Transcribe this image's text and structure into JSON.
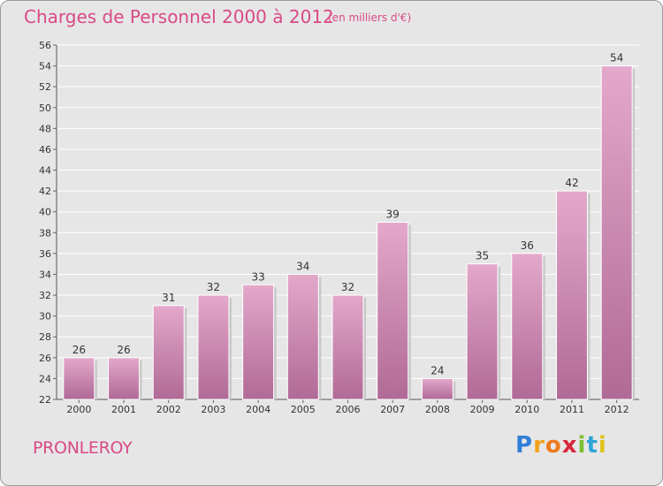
{
  "header": {
    "title": "Charges de Personnel 2000 à 2012",
    "subtitle": "(en milliers d'€)"
  },
  "footer": {
    "town": "PRONLEROY",
    "logo": {
      "letters": [
        "P",
        "r",
        "o",
        "x",
        "i",
        "t",
        "i"
      ],
      "colors": [
        "#2f7fd8",
        "#f2a31b",
        "#ee7a1e",
        "#d8263c",
        "#7cbf2e",
        "#2fa3d8",
        "#e0c21a"
      ]
    }
  },
  "colors": {
    "bar_top": "#e4a8ca",
    "bar_bottom": "#b06a96",
    "title": "#d94a86",
    "plot_background": "#e6e6e6",
    "grid": "#ffffff"
  },
  "chart_data": {
    "type": "bar",
    "title": "Charges de Personnel 2000 à 2012",
    "subtitle": "(en milliers d'€)",
    "categories": [
      "2000",
      "2001",
      "2002",
      "2003",
      "2004",
      "2005",
      "2006",
      "2007",
      "2008",
      "2009",
      "2010",
      "2011",
      "2012"
    ],
    "values": [
      26,
      26,
      31,
      32,
      33,
      34,
      32,
      39,
      24,
      35,
      36,
      42,
      54
    ],
    "ylim": [
      22,
      56
    ],
    "yticks": [
      22,
      24,
      26,
      28,
      30,
      32,
      34,
      36,
      38,
      40,
      42,
      44,
      46,
      48,
      50,
      52,
      54,
      56
    ],
    "grid": true
  }
}
